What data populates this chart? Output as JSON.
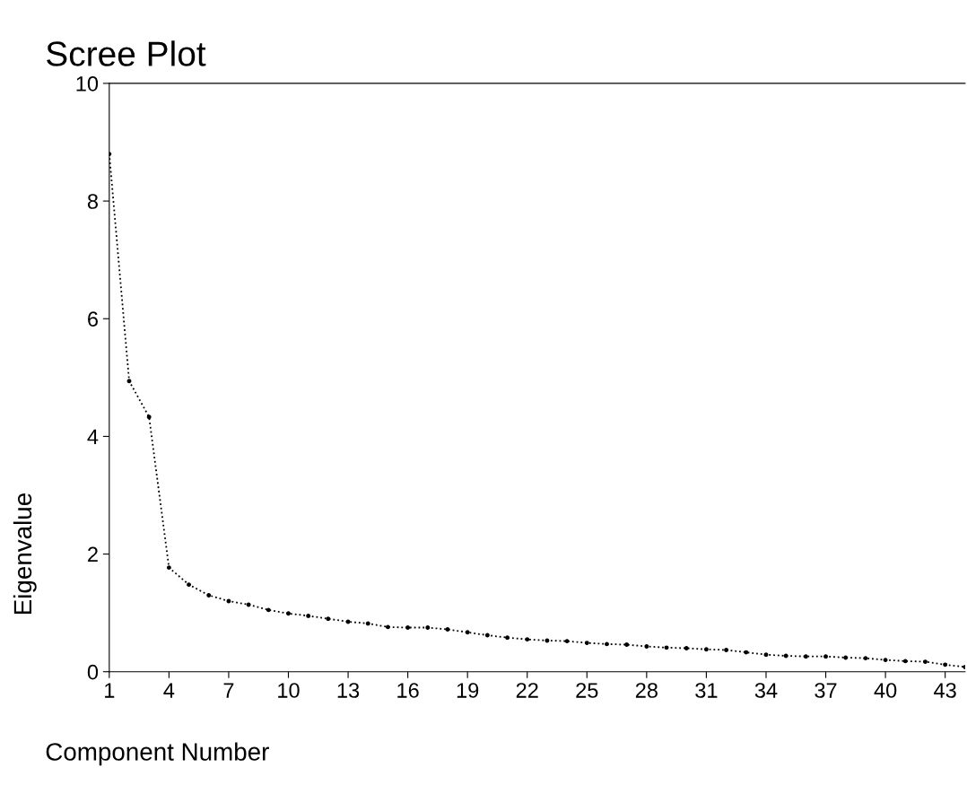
{
  "chart_data": {
    "type": "line",
    "title": "Scree Plot",
    "xlabel": "Component Number",
    "ylabel": "Eigenvalue",
    "x": [
      1,
      2,
      3,
      4,
      5,
      6,
      7,
      8,
      9,
      10,
      11,
      12,
      13,
      14,
      15,
      16,
      17,
      18,
      19,
      20,
      21,
      22,
      23,
      24,
      25,
      26,
      27,
      28,
      29,
      30,
      31,
      32,
      33,
      34,
      35,
      36,
      37,
      38,
      39,
      40,
      41,
      42,
      43,
      44
    ],
    "series": [
      {
        "color": "#000000",
        "values": [
          8.8,
          4.94,
          4.33,
          1.77,
          1.48,
          1.3,
          1.2,
          1.14,
          1.05,
          0.99,
          0.95,
          0.9,
          0.85,
          0.82,
          0.76,
          0.75,
          0.75,
          0.72,
          0.67,
          0.62,
          0.58,
          0.55,
          0.53,
          0.52,
          0.49,
          0.47,
          0.46,
          0.43,
          0.41,
          0.4,
          0.38,
          0.37,
          0.33,
          0.29,
          0.27,
          0.26,
          0.26,
          0.24,
          0.23,
          0.2,
          0.18,
          0.17,
          0.12,
          0.08
        ]
      }
    ],
    "xlim": [
      1,
      44
    ],
    "xticks": [
      1,
      4,
      7,
      10,
      13,
      16,
      19,
      22,
      25,
      28,
      31,
      34,
      37,
      40,
      43
    ],
    "ylim": [
      0,
      10
    ],
    "yticks": [
      0,
      2,
      4,
      6,
      8,
      10
    ],
    "grid": false,
    "marker": "circle",
    "line_style": "dotted"
  }
}
